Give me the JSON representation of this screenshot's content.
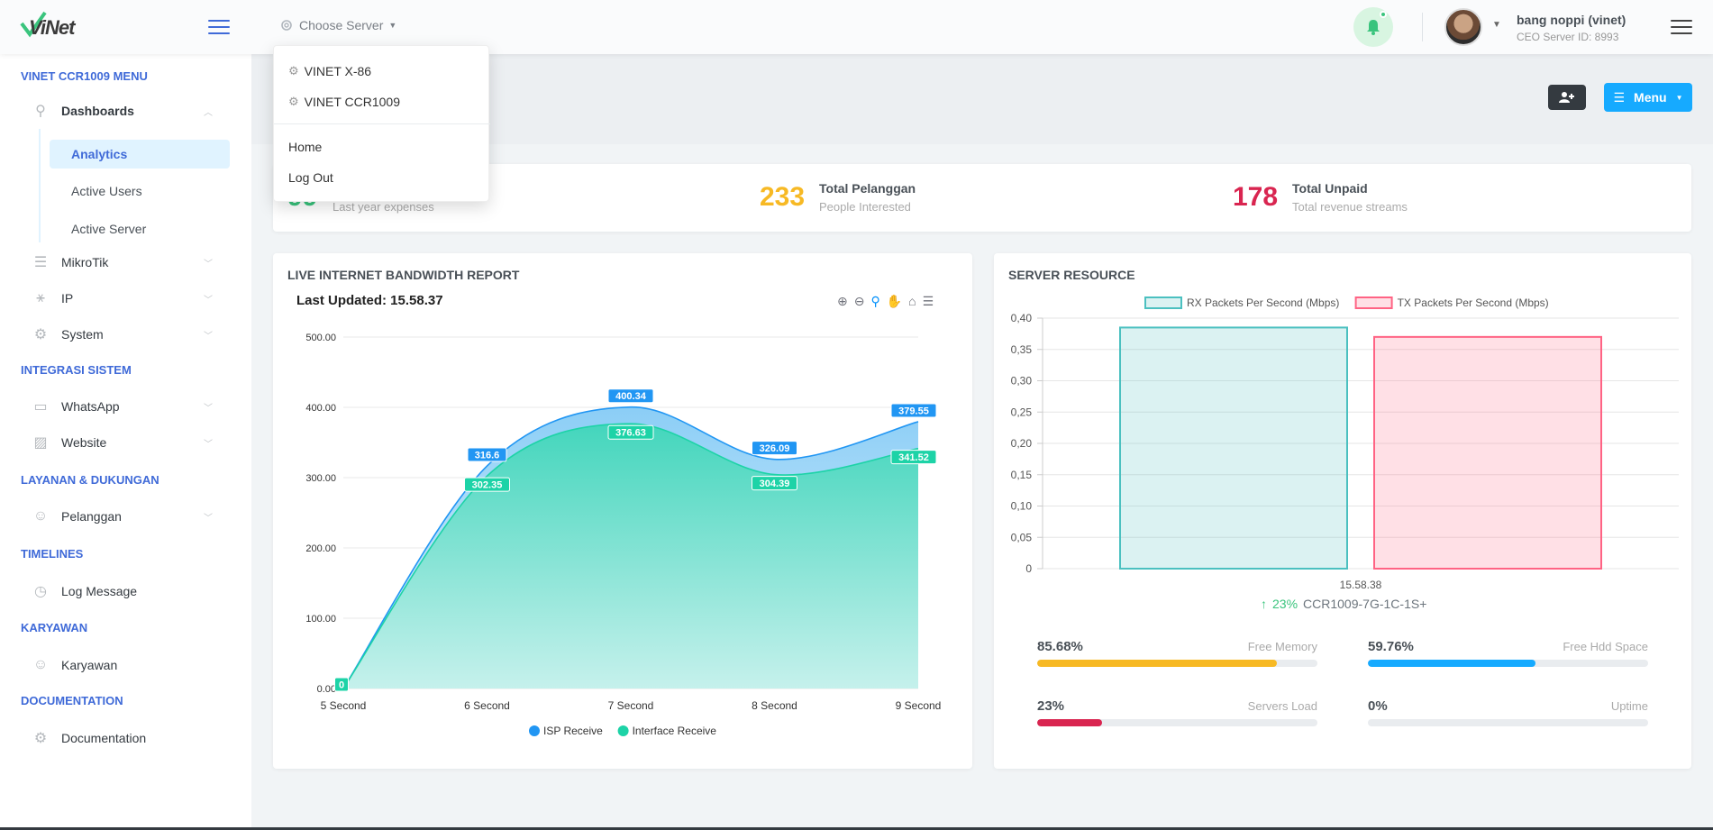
{
  "header": {
    "logo": "ViNet",
    "choose_server": "Choose Server",
    "user_name": "bang noppi (vinet)",
    "user_sub": "CEO Server ID: 8993"
  },
  "dropdown": {
    "servers": [
      "VINET X-86",
      "VINET CCR1009"
    ],
    "links": [
      "Home",
      "Log Out"
    ]
  },
  "sidebar": {
    "sections": [
      "VINET CCR1009 MENU",
      "INTEGRASI SISTEM",
      "LAYANAN & DUKUNGAN",
      "TIMELINES",
      "KARYAWAN",
      "DOCUMENTATION"
    ],
    "dashboards": "Dashboards",
    "subitems": [
      "Analytics",
      "Active Users",
      "Active Server"
    ],
    "mikrotik": "MikroTik",
    "ip": "IP",
    "system": "System",
    "whatsapp": "WhatsApp",
    "website": "Website",
    "pelanggan": "Pelanggan",
    "log_message": "Log Message",
    "karyawan": "Karyawan",
    "documentation": "Documentation"
  },
  "toolbar": {
    "menu_label": "Menu"
  },
  "stats": [
    {
      "value": "99",
      "title": "",
      "sub": "Last year expenses",
      "color": "#3ac47d"
    },
    {
      "value": "233",
      "title": "Total Pelanggan",
      "sub": "People Interested",
      "color": "#f7b924"
    },
    {
      "value": "178",
      "title": "Total Unpaid",
      "sub": "Total revenue streams",
      "color": "#d92550"
    }
  ],
  "bandwidth": {
    "heading": "LIVE INTERNET BANDWIDTH REPORT",
    "updated": "Last Updated: 15.58.37"
  },
  "resource": {
    "heading": "SERVER RESOURCE",
    "device_pct": "23%",
    "device": "CCR1009-7G-1C-1S+",
    "progress": [
      {
        "value": "85.68%",
        "label": "Free Memory",
        "fraction": 0.8568,
        "color": "#f7b924"
      },
      {
        "value": "59.76%",
        "label": "Free Hdd Space",
        "fraction": 0.5976,
        "color": "#16aaff"
      },
      {
        "value": "23%",
        "label": "Servers Load",
        "fraction": 0.23,
        "color": "#d92550"
      },
      {
        "value": "0%",
        "label": "Uptime",
        "fraction": 0,
        "color": "#3f6ad8"
      }
    ]
  },
  "chart_data": [
    {
      "type": "area",
      "x": [
        "5 Second",
        "6 Second",
        "7 Second",
        "8 Second",
        "9 Second"
      ],
      "series": [
        {
          "name": "ISP Receive",
          "values": [
            0,
            316.6,
            400.34,
            326.09,
            379.55
          ],
          "labels": [
            "",
            "316.6",
            "400.34",
            "326.09",
            "379.55"
          ],
          "color": "#2196f3"
        },
        {
          "name": "Interface Receive",
          "values": [
            0,
            302.35,
            376.63,
            304.39,
            341.52
          ],
          "labels": [
            "0",
            "302.35",
            "376.63",
            "304.39",
            "341.52"
          ],
          "color": "#1dd3a7"
        }
      ],
      "yticks": [
        "0.00",
        "100.00",
        "200.00",
        "300.00",
        "400.00",
        "500.00"
      ],
      "ylim": [
        0,
        500
      ],
      "legend": "bottom",
      "grid": true
    },
    {
      "type": "bar",
      "categories": [
        "15.58.38"
      ],
      "series": [
        {
          "name": "RX Packets Per Second (Mbps)",
          "values": [
            0.385
          ],
          "color": "#4bc0c0"
        },
        {
          "name": "TX Packets Per Second (Mbps)",
          "values": [
            0.37
          ],
          "color": "#ff6384"
        }
      ],
      "yticks": [
        "0",
        "0,05",
        "0,10",
        "0,15",
        "0,20",
        "0,25",
        "0,30",
        "0,35",
        "0,40"
      ],
      "ylim": [
        0,
        0.4
      ],
      "legend": "top",
      "grid": true
    }
  ]
}
